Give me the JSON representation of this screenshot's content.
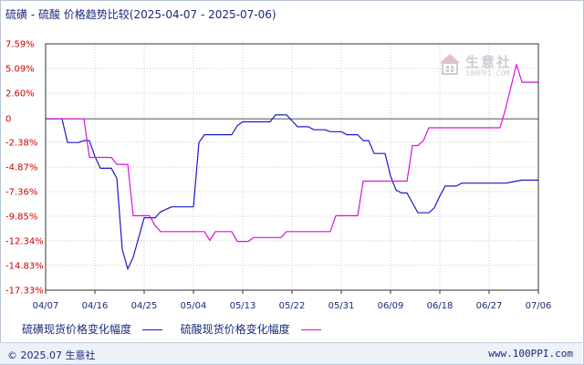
{
  "title": "硫磺 - 硫酸 价格趋势比较(2025-04-07 - 2025-07-06)",
  "watermark": {
    "name": "生意社",
    "url": "100PPI.COM"
  },
  "footer": {
    "copyright": "© 2025.07 生意社",
    "site": "www.100PPI.com"
  },
  "colors": {
    "series1": "#1a1acc",
    "series2": "#dd11dd",
    "ytick": "#cc0000",
    "grid": "#c8c8c8"
  },
  "chart_data": {
    "type": "line",
    "title": "硫磺 - 硫酸 价格趋势比较(2025-04-07 - 2025-07-06)",
    "xlabel": "",
    "ylabel": "",
    "x_range": [
      "2025-04-07",
      "2025-07-06"
    ],
    "ylim": [
      -17.33,
      7.59
    ],
    "y_ticks": [
      {
        "value": 7.59,
        "label": "7.59%"
      },
      {
        "value": 5.09,
        "label": "5.09%"
      },
      {
        "value": 2.6,
        "label": "2.60%"
      },
      {
        "value": 0,
        "label": "0"
      },
      {
        "value": -2.38,
        "label": "-2.38%"
      },
      {
        "value": -4.87,
        "label": "-4.87%"
      },
      {
        "value": -7.36,
        "label": "-7.36%"
      },
      {
        "value": -9.85,
        "label": "-9.85%"
      },
      {
        "value": -12.34,
        "label": "-12.34%"
      },
      {
        "value": -14.83,
        "label": "-14.83%"
      },
      {
        "value": -17.33,
        "label": "-17.33%"
      }
    ],
    "x_ticks": [
      {
        "date": "2025-04-07",
        "label": "04/07"
      },
      {
        "date": "2025-04-16",
        "label": "04/16"
      },
      {
        "date": "2025-04-25",
        "label": "04/25"
      },
      {
        "date": "2025-05-04",
        "label": "05/04"
      },
      {
        "date": "2025-05-13",
        "label": "05/13"
      },
      {
        "date": "2025-05-22",
        "label": "05/22"
      },
      {
        "date": "2025-05-31",
        "label": "05/31"
      },
      {
        "date": "2025-06-09",
        "label": "06/09"
      },
      {
        "date": "2025-06-18",
        "label": "06/18"
      },
      {
        "date": "2025-06-27",
        "label": "06/27"
      },
      {
        "date": "2025-07-06",
        "label": "07/06"
      }
    ],
    "grid": true,
    "legend_position": "bottom-left",
    "series": [
      {
        "name": "硫磺现货价格变化幅度",
        "color": "#1a1acc",
        "points": [
          [
            "2025-04-07",
            0
          ],
          [
            "2025-04-10",
            0
          ],
          [
            "2025-04-11",
            -2.4
          ],
          [
            "2025-04-13",
            -2.4
          ],
          [
            "2025-04-14",
            -2.2
          ],
          [
            "2025-04-15",
            -2.2
          ],
          [
            "2025-04-16",
            -3.8
          ],
          [
            "2025-04-17",
            -5.0
          ],
          [
            "2025-04-19",
            -5.0
          ],
          [
            "2025-04-20",
            -6.0
          ],
          [
            "2025-04-21",
            -13.2
          ],
          [
            "2025-04-22",
            -15.2
          ],
          [
            "2025-04-23",
            -14.0
          ],
          [
            "2025-04-24",
            -12.0
          ],
          [
            "2025-04-25",
            -10.0
          ],
          [
            "2025-04-27",
            -10.0
          ],
          [
            "2025-04-28",
            -9.4
          ],
          [
            "2025-04-30",
            -8.9
          ],
          [
            "2025-05-04",
            -8.9
          ],
          [
            "2025-05-05",
            -2.4
          ],
          [
            "2025-05-06",
            -1.6
          ],
          [
            "2025-05-11",
            -1.6
          ],
          [
            "2025-05-12",
            -0.7
          ],
          [
            "2025-05-13",
            -0.3
          ],
          [
            "2025-05-18",
            -0.3
          ],
          [
            "2025-05-19",
            0.4
          ],
          [
            "2025-05-21",
            0.4
          ],
          [
            "2025-05-22",
            -0.2
          ],
          [
            "2025-05-23",
            -0.8
          ],
          [
            "2025-05-25",
            -0.8
          ],
          [
            "2025-05-26",
            -1.1
          ],
          [
            "2025-05-28",
            -1.1
          ],
          [
            "2025-05-29",
            -1.3
          ],
          [
            "2025-05-31",
            -1.3
          ],
          [
            "2025-06-01",
            -1.6
          ],
          [
            "2025-06-03",
            -1.6
          ],
          [
            "2025-06-04",
            -2.2
          ],
          [
            "2025-06-05",
            -2.2
          ],
          [
            "2025-06-06",
            -3.5
          ],
          [
            "2025-06-08",
            -3.5
          ],
          [
            "2025-06-09",
            -5.8
          ],
          [
            "2025-06-10",
            -7.2
          ],
          [
            "2025-06-11",
            -7.5
          ],
          [
            "2025-06-12",
            -7.5
          ],
          [
            "2025-06-13",
            -8.5
          ],
          [
            "2025-06-14",
            -9.5
          ],
          [
            "2025-06-16",
            -9.5
          ],
          [
            "2025-06-17",
            -9.0
          ],
          [
            "2025-06-18",
            -7.8
          ],
          [
            "2025-06-19",
            -6.8
          ],
          [
            "2025-06-21",
            -6.8
          ],
          [
            "2025-06-22",
            -6.5
          ],
          [
            "2025-06-30",
            -6.5
          ],
          [
            "2025-07-01",
            -6.4
          ],
          [
            "2025-07-03",
            -6.2
          ],
          [
            "2025-07-06",
            -6.2
          ]
        ]
      },
      {
        "name": "硫酸现货价格变化幅度",
        "color": "#dd11dd",
        "points": [
          [
            "2025-04-07",
            0
          ],
          [
            "2025-04-14",
            0
          ],
          [
            "2025-04-15",
            -3.9
          ],
          [
            "2025-04-19",
            -3.9
          ],
          [
            "2025-04-20",
            -4.6
          ],
          [
            "2025-04-22",
            -4.6
          ],
          [
            "2025-04-23",
            -9.8
          ],
          [
            "2025-04-26",
            -9.8
          ],
          [
            "2025-04-27",
            -10.8
          ],
          [
            "2025-04-28",
            -11.4
          ],
          [
            "2025-05-06",
            -11.4
          ],
          [
            "2025-05-07",
            -12.3
          ],
          [
            "2025-05-08",
            -11.4
          ],
          [
            "2025-05-11",
            -11.4
          ],
          [
            "2025-05-12",
            -12.4
          ],
          [
            "2025-05-14",
            -12.4
          ],
          [
            "2025-05-15",
            -12.0
          ],
          [
            "2025-05-20",
            -12.0
          ],
          [
            "2025-05-21",
            -11.4
          ],
          [
            "2025-05-29",
            -11.4
          ],
          [
            "2025-05-30",
            -9.8
          ],
          [
            "2025-06-03",
            -9.8
          ],
          [
            "2025-06-04",
            -6.3
          ],
          [
            "2025-06-12",
            -6.3
          ],
          [
            "2025-06-13",
            -2.7
          ],
          [
            "2025-06-14",
            -2.7
          ],
          [
            "2025-06-15",
            -2.2
          ],
          [
            "2025-06-16",
            -0.9
          ],
          [
            "2025-06-29",
            -0.9
          ],
          [
            "2025-06-30",
            1.0
          ],
          [
            "2025-07-02",
            5.5
          ],
          [
            "2025-07-03",
            3.7
          ],
          [
            "2025-07-06",
            3.7
          ]
        ]
      }
    ]
  }
}
